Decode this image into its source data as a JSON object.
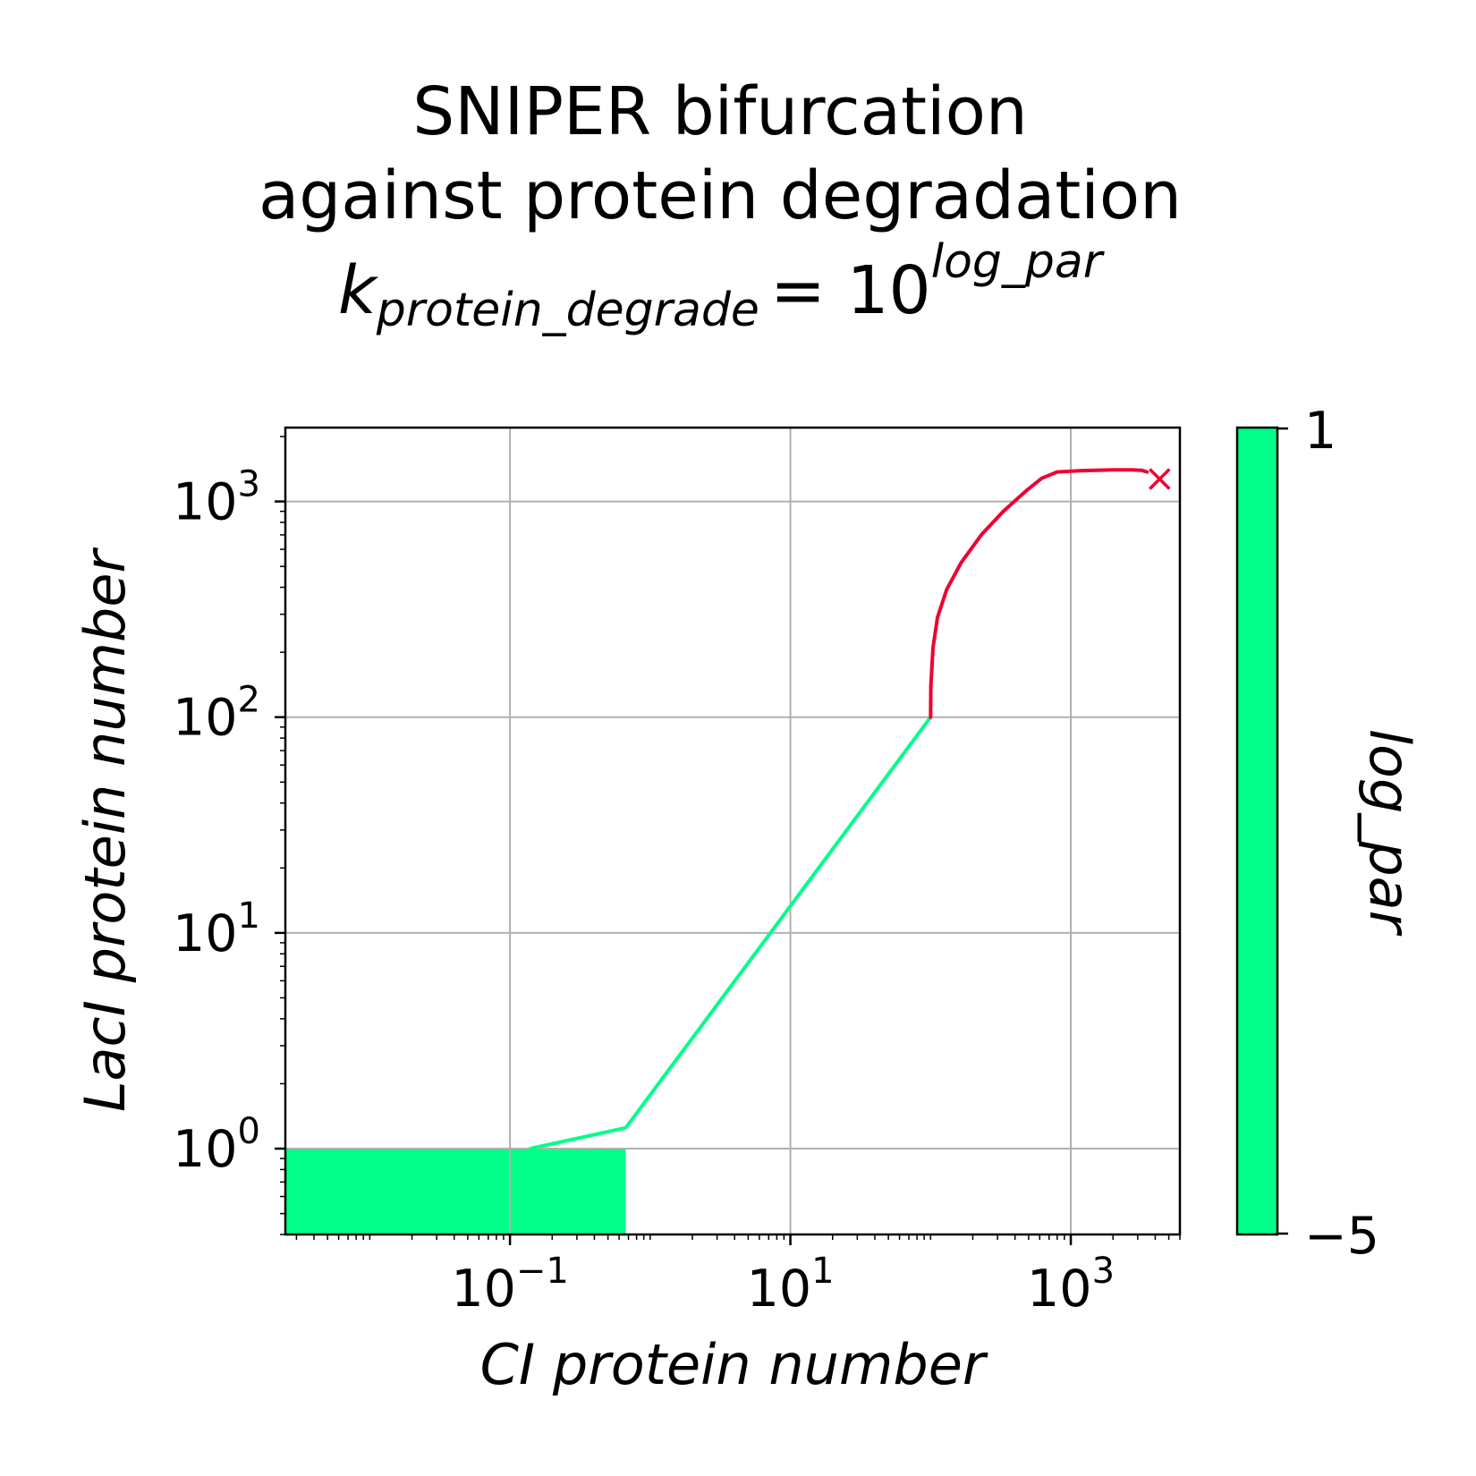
{
  "chart_data": {
    "type": "line",
    "title_lines": [
      "SNIPER bifurcation",
      "against protein degradation"
    ],
    "formula": {
      "k": "k",
      "subscript": "protein_degrade",
      "equals": "= 10",
      "superscript": "log_par"
    },
    "xlabel": "CI protein number",
    "ylabel": "LacI protein number",
    "xscale": "log",
    "yscale": "log",
    "xlim": [
      0.0025,
      6000
    ],
    "ylim": [
      0.4,
      2200
    ],
    "grid": true,
    "x_ticks": [
      {
        "value": 0.1,
        "base": "10",
        "exp": "−1"
      },
      {
        "value": 10,
        "base": "10",
        "exp": "1"
      },
      {
        "value": 1000,
        "base": "10",
        "exp": "3"
      }
    ],
    "y_ticks": [
      {
        "value": 1,
        "base": "10",
        "exp": "0"
      },
      {
        "value": 10,
        "base": "10",
        "exp": "1"
      },
      {
        "value": 100,
        "base": "10",
        "exp": "2"
      },
      {
        "value": 1000,
        "base": "10",
        "exp": "3"
      }
    ],
    "series": [
      {
        "color": "#00ff88",
        "x": [
          0.14,
          0.67,
          100
        ],
        "y": [
          1.0,
          1.25,
          100
        ]
      },
      {
        "color": "#ee0033",
        "x": [
          100,
          100.5,
          104,
          112,
          130,
          165,
          230,
          330,
          480,
          620,
          800,
          1200,
          2000,
          2700,
          3200,
          3500
        ],
        "y": [
          100,
          140,
          210,
          290,
          390,
          520,
          700,
          900,
          1120,
          1280,
          1370,
          1390,
          1400,
          1400,
          1395,
          1370
        ]
      }
    ],
    "region": {
      "color": "#00ff88",
      "x": [
        0.0025,
        0.67
      ],
      "y": [
        0.4,
        1.0
      ]
    },
    "end_marker": {
      "x": 4300,
      "y": 1270,
      "symbol": "x",
      "color": "#ee0033"
    },
    "colorbar": {
      "label": "log_par",
      "min_label": "−5",
      "max_label": "1",
      "color": "#00ff88"
    }
  }
}
